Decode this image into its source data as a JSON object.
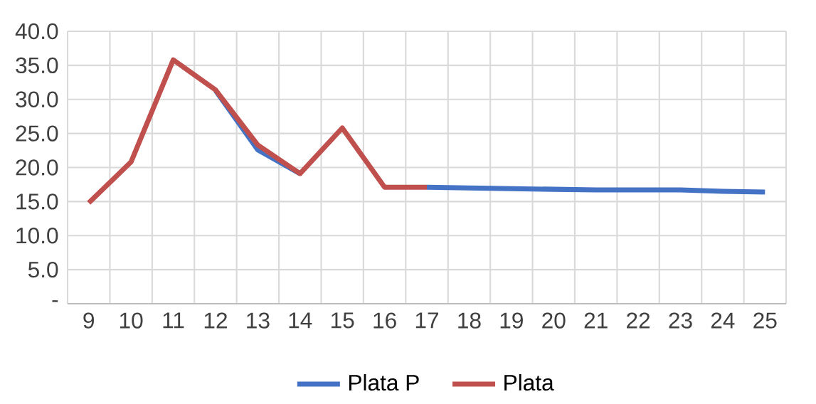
{
  "chart_data": {
    "type": "line",
    "categories": [
      "9",
      "10",
      "11",
      "12",
      "13",
      "14",
      "15",
      "16",
      "17",
      "18",
      "19",
      "20",
      "21",
      "22",
      "23",
      "24",
      "25"
    ],
    "series": [
      {
        "name": "Plata P",
        "color": "#4472c4",
        "values": [
          null,
          null,
          null,
          31.3,
          22.6,
          19.1,
          null,
          null,
          17.1,
          17.0,
          16.9,
          16.8,
          16.7,
          16.7,
          16.7,
          16.5,
          16.4
        ]
      },
      {
        "name": "Plata",
        "color": "#c0504d",
        "values": [
          14.8,
          20.8,
          35.8,
          31.4,
          23.3,
          19.1,
          25.8,
          17.1,
          17.1,
          null,
          null,
          null,
          null,
          null,
          null,
          null,
          null
        ]
      }
    ],
    "ylim": [
      0,
      40
    ],
    "yticks": [
      {
        "value": 0,
        "label": "-"
      },
      {
        "value": 5,
        "label": "5.0"
      },
      {
        "value": 10,
        "label": "10.0"
      },
      {
        "value": 15,
        "label": "15.0"
      },
      {
        "value": 20,
        "label": "20.0"
      },
      {
        "value": 25,
        "label": "25.0"
      },
      {
        "value": 30,
        "label": "30.0"
      },
      {
        "value": 35,
        "label": "35.0"
      },
      {
        "value": 40,
        "label": "40.0"
      }
    ],
    "grid": true,
    "legend": "bottom",
    "marker": "none",
    "line_style": "solid"
  }
}
